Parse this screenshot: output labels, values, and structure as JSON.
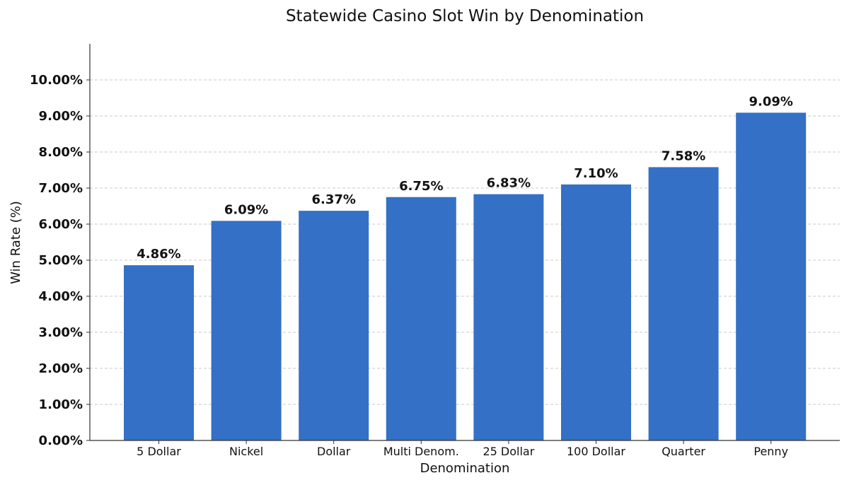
{
  "chart_data": {
    "type": "bar",
    "title": "Statewide Casino Slot Win by Denomination",
    "xlabel": "Denomination",
    "ylabel": "Win Rate (%)",
    "categories": [
      "5 Dollar",
      "Nickel",
      "Dollar",
      "Multi Denom.",
      "25 Dollar",
      "100 Dollar",
      "Quarter",
      "Penny"
    ],
    "values": [
      4.86,
      6.09,
      6.37,
      6.75,
      6.83,
      7.1,
      7.58,
      9.09
    ],
    "data_labels": [
      "4.86%",
      "6.09%",
      "6.37%",
      "6.75%",
      "6.83%",
      "7.10%",
      "7.58%",
      "9.09%"
    ],
    "ylim": [
      0,
      11
    ],
    "yticks": [
      0,
      1,
      2,
      3,
      4,
      5,
      6,
      7,
      8,
      9,
      10
    ],
    "ytick_labels": [
      "0.00%",
      "1.00%",
      "2.00%",
      "3.00%",
      "4.00%",
      "5.00%",
      "6.00%",
      "7.00%",
      "8.00%",
      "9.00%",
      "10.00%"
    ],
    "grid": true,
    "bar_color": "#3470c6"
  }
}
